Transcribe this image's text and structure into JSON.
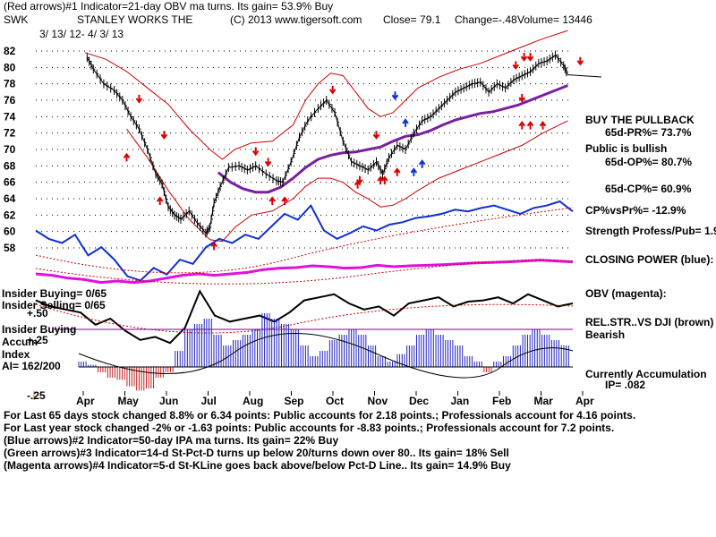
{
  "header": {
    "line1": "(Red arrows)#1 Indicator=21-day OBV ma turns. Its gain= 53.9% Buy",
    "symbol": "SWK",
    "company": "STANLEY WORKS THE",
    "copyright": "(C) 2013 www.tigersoft.com",
    "close": "Close=  79.1",
    "change": "Change=-.48",
    "volume": "Volume= 13446",
    "date_range": "3/ 13/ 12-  4/ 3/ 13"
  },
  "chart_data": {
    "type": "line",
    "title": "STANLEY WORKS THE (SWK)",
    "ylim": [
      58,
      82
    ],
    "yticks": [
      "82",
      "80",
      "78",
      "76",
      "74",
      "72",
      "70",
      "68",
      "66",
      "64",
      "62",
      "60",
      "58"
    ],
    "xlabels": [
      "Apr",
      "May",
      "Jun",
      "Jul",
      "Aug",
      "Sep",
      "Oct",
      "Nov",
      "Dec",
      "Jan",
      "Feb",
      "Mar",
      "Apr"
    ],
    "x_months": [
      0,
      1,
      2,
      3,
      4,
      5,
      6,
      7,
      8,
      9,
      10,
      11,
      12
    ],
    "price": [
      [
        0.05,
        81.2
      ],
      [
        0.2,
        79.8
      ],
      [
        0.45,
        78.0
      ],
      [
        0.7,
        77.2
      ],
      [
        0.9,
        76.0
      ],
      [
        1.1,
        74.0
      ],
      [
        1.3,
        72.5
      ],
      [
        1.5,
        70.0
      ],
      [
        1.7,
        67.0
      ],
      [
        1.85,
        65.8
      ],
      [
        2.0,
        63.0
      ],
      [
        2.15,
        62.0
      ],
      [
        2.3,
        61.5
      ],
      [
        2.5,
        62.5
      ],
      [
        2.7,
        61.0
      ],
      [
        2.9,
        59.8
      ],
      [
        3.0,
        60.5
      ],
      [
        3.1,
        63.5
      ],
      [
        3.25,
        65.5
      ],
      [
        3.45,
        67.8
      ],
      [
        3.7,
        68.0
      ],
      [
        3.9,
        67.5
      ],
      [
        4.1,
        68.0
      ],
      [
        4.35,
        67.0
      ],
      [
        4.6,
        66.2
      ],
      [
        4.75,
        66.0
      ],
      [
        4.95,
        68.5
      ],
      [
        5.15,
        71.5
      ],
      [
        5.35,
        73.5
      ],
      [
        5.6,
        75.0
      ],
      [
        5.8,
        76.0
      ],
      [
        6.0,
        74.5
      ],
      [
        6.2,
        71.0
      ],
      [
        6.4,
        68.5
      ],
      [
        6.6,
        68.0
      ],
      [
        6.8,
        67.5
      ],
      [
        7.0,
        68.5
      ],
      [
        7.15,
        67.0
      ],
      [
        7.3,
        69.0
      ],
      [
        7.5,
        70.5
      ],
      [
        7.7,
        70.0
      ],
      [
        7.9,
        72.0
      ],
      [
        8.1,
        73.5
      ],
      [
        8.3,
        74.0
      ],
      [
        8.5,
        75.0
      ],
      [
        8.7,
        76.0
      ],
      [
        8.9,
        77.0
      ],
      [
        9.1,
        77.5
      ],
      [
        9.3,
        78.0
      ],
      [
        9.5,
        78.2
      ],
      [
        9.7,
        77.0
      ],
      [
        9.9,
        78.0
      ],
      [
        10.1,
        77.5
      ],
      [
        10.3,
        78.5
      ],
      [
        10.5,
        79.0
      ],
      [
        10.7,
        79.5
      ],
      [
        10.9,
        80.5
      ],
      [
        11.1,
        80.8
      ],
      [
        11.3,
        81.5
      ],
      [
        11.5,
        80.2
      ],
      [
        11.6,
        79.1
      ]
    ],
    "ma50": [
      [
        3.2,
        67.2
      ],
      [
        3.5,
        66.0
      ],
      [
        3.8,
        65.2
      ],
      [
        4.1,
        64.8
      ],
      [
        4.4,
        64.8
      ],
      [
        4.7,
        65.4
      ],
      [
        5.0,
        66.5
      ],
      [
        5.3,
        67.8
      ],
      [
        5.6,
        68.8
      ],
      [
        5.9,
        69.3
      ],
      [
        6.2,
        69.6
      ],
      [
        6.5,
        69.7
      ],
      [
        6.8,
        70.0
      ],
      [
        7.1,
        70.3
      ],
      [
        7.4,
        71.0
      ],
      [
        7.7,
        71.6
      ],
      [
        8.0,
        71.8
      ],
      [
        8.3,
        72.3
      ],
      [
        8.6,
        73.0
      ],
      [
        8.9,
        73.6
      ],
      [
        9.2,
        74.0
      ],
      [
        9.5,
        74.4
      ],
      [
        9.8,
        74.6
      ],
      [
        10.1,
        75.0
      ],
      [
        10.4,
        75.4
      ],
      [
        10.7,
        76.0
      ],
      [
        11.0,
        76.6
      ],
      [
        11.3,
        77.2
      ],
      [
        11.6,
        77.8
      ]
    ],
    "band_upper": [
      [
        0.0,
        81.8
      ],
      [
        0.5,
        81.0
      ],
      [
        1.0,
        79.5
      ],
      [
        1.5,
        77.5
      ],
      [
        2.0,
        75.5
      ],
      [
        2.5,
        72.5
      ],
      [
        3.0,
        70.0
      ],
      [
        3.3,
        68.8
      ],
      [
        3.6,
        70.0
      ],
      [
        4.0,
        70.8
      ],
      [
        4.5,
        71.0
      ],
      [
        5.0,
        73.0
      ],
      [
        5.3,
        76.0
      ],
      [
        5.6,
        78.0
      ],
      [
        5.9,
        79.3
      ],
      [
        6.2,
        79.0
      ],
      [
        6.5,
        77.0
      ],
      [
        6.8,
        75.0
      ],
      [
        7.1,
        74.0
      ],
      [
        7.4,
        74.5
      ],
      [
        7.7,
        76.0
      ],
      [
        8.0,
        77.5
      ],
      [
        8.5,
        78.8
      ],
      [
        9.0,
        79.8
      ],
      [
        9.5,
        80.5
      ],
      [
        10.0,
        81.5
      ],
      [
        10.5,
        82.5
      ],
      [
        11.0,
        83.5
      ],
      [
        11.6,
        84.5
      ]
    ],
    "band_lower": [
      [
        1.0,
        72.5
      ],
      [
        1.5,
        69.0
      ],
      [
        2.0,
        65.0
      ],
      [
        2.5,
        61.5
      ],
      [
        3.0,
        59.0
      ],
      [
        3.3,
        58.8
      ],
      [
        3.6,
        60.5
      ],
      [
        4.0,
        62.0
      ],
      [
        4.5,
        62.5
      ],
      [
        5.0,
        64.0
      ],
      [
        5.3,
        65.5
      ],
      [
        5.6,
        66.5
      ],
      [
        5.9,
        66.5
      ],
      [
        6.2,
        66.0
      ],
      [
        6.5,
        64.8
      ],
      [
        6.8,
        64.0
      ],
      [
        7.1,
        63.0
      ],
      [
        7.4,
        63.2
      ],
      [
        7.7,
        64.0
      ],
      [
        8.0,
        65.0
      ],
      [
        8.5,
        66.5
      ],
      [
        9.0,
        67.5
      ],
      [
        9.5,
        68.5
      ],
      [
        10.0,
        69.5
      ],
      [
        10.5,
        70.5
      ],
      [
        11.0,
        72.0
      ],
      [
        11.6,
        73.5
      ]
    ],
    "arrows": [
      {
        "dir": "down",
        "color": "red",
        "x": 1.3,
        "y": 75.9
      },
      {
        "dir": "up",
        "color": "red",
        "x": 1.0,
        "y": 69.3
      },
      {
        "dir": "down",
        "color": "red",
        "x": 1.9,
        "y": 71.5
      },
      {
        "dir": "up",
        "color": "red",
        "x": 1.8,
        "y": 64.0
      },
      {
        "dir": "up",
        "color": "red",
        "x": 3.1,
        "y": 58.5
      },
      {
        "dir": "down",
        "color": "red",
        "x": 4.1,
        "y": 69.5
      },
      {
        "dir": "down",
        "color": "red",
        "x": 4.4,
        "y": 68.2
      },
      {
        "dir": "up",
        "color": "red",
        "x": 4.5,
        "y": 64.0
      },
      {
        "dir": "up",
        "color": "red",
        "x": 4.8,
        "y": 64.0
      },
      {
        "dir": "down",
        "color": "red",
        "x": 5.95,
        "y": 77.0
      },
      {
        "dir": "down",
        "color": "red",
        "x": 6.6,
        "y": 66.0
      },
      {
        "dir": "down",
        "color": "red",
        "x": 7.0,
        "y": 71.5
      },
      {
        "dir": "up",
        "color": "red",
        "x": 6.55,
        "y": 66.0
      },
      {
        "dir": "up",
        "color": "red",
        "x": 7.1,
        "y": 66.5
      },
      {
        "dir": "up",
        "color": "red",
        "x": 7.2,
        "y": 66.5
      },
      {
        "dir": "up",
        "color": "red",
        "x": 7.5,
        "y": 67.5
      },
      {
        "dir": "down",
        "color": "blue",
        "x": 7.45,
        "y": 76.3
      },
      {
        "dir": "up",
        "color": "blue",
        "x": 7.7,
        "y": 73.5
      },
      {
        "dir": "up",
        "color": "blue",
        "x": 7.9,
        "y": 67.5
      },
      {
        "dir": "up",
        "color": "blue",
        "x": 8.1,
        "y": 68.5
      },
      {
        "dir": "down",
        "color": "red",
        "x": 10.35,
        "y": 80.0
      },
      {
        "dir": "down",
        "color": "red",
        "x": 10.55,
        "y": 81.0
      },
      {
        "dir": "down",
        "color": "red",
        "x": 10.7,
        "y": 81.0
      },
      {
        "dir": "down",
        "color": "red",
        "x": 10.5,
        "y": 76.0
      },
      {
        "dir": "up",
        "color": "red",
        "x": 10.5,
        "y": 73.2
      },
      {
        "dir": "up",
        "color": "red",
        "x": 10.7,
        "y": 73.2
      },
      {
        "dir": "up",
        "color": "red",
        "x": 11.0,
        "y": 73.2
      },
      {
        "dir": "down",
        "color": "red",
        "x": 11.9,
        "y": 80.5
      }
    ],
    "closing_power": [
      0.65,
      0.55,
      0.5,
      0.6,
      0.35,
      0.45,
      0.3,
      0.1,
      0.05,
      0.2,
      0.12,
      0.3,
      0.25,
      0.45,
      0.55,
      0.5,
      0.6,
      0.55,
      0.7,
      0.85,
      0.78,
      0.95,
      0.65,
      0.55,
      0.62,
      0.7,
      0.65,
      0.72,
      0.75,
      0.8,
      0.82,
      0.85,
      0.9,
      0.88,
      0.92,
      0.95,
      0.9,
      0.85,
      0.92,
      0.95,
      1.0,
      0.88
    ],
    "obv": [
      0.5,
      0.45,
      0.35,
      0.3,
      0.2,
      0.25,
      0.2,
      0.25,
      0.35,
      0.45,
      0.5,
      0.45,
      0.5,
      0.55,
      0.65,
      0.7,
      0.72,
      0.78,
      0.75,
      0.7,
      0.72,
      0.8,
      0.75,
      0.78,
      0.8,
      0.82,
      0.85,
      0.88,
      0.9,
      0.92,
      0.95,
      0.98,
      0.95,
      0.92
    ],
    "rel_strength": [
      0.8,
      0.7,
      0.65,
      0.6,
      0.4,
      0.5,
      0.3,
      0.15,
      0.2,
      0.1,
      0.35,
      0.95,
      0.55,
      0.45,
      0.5,
      0.55,
      0.45,
      0.6,
      0.8,
      0.85,
      0.9,
      0.75,
      0.65,
      0.7,
      0.55,
      0.75,
      0.8,
      0.85,
      0.7,
      0.78,
      0.8,
      0.85,
      0.75,
      0.9,
      0.8,
      0.7,
      0.75
    ],
    "accum": [
      0.05,
      0.02,
      -0.05,
      -0.1,
      -0.12,
      -0.18,
      -0.22,
      -0.2,
      -0.1,
      -0.05,
      0.15,
      0.35,
      0.4,
      0.45,
      0.3,
      0.2,
      0.25,
      0.3,
      0.35,
      0.5,
      0.45,
      0.4,
      0.35,
      0.2,
      0.1,
      0.15,
      0.25,
      0.3,
      0.35,
      0.3,
      0.2,
      0.1,
      0.05,
      0.12,
      0.2,
      0.3,
      0.35,
      0.3,
      0.25,
      0.2,
      0.1,
      0.05,
      -0.05,
      0.05,
      0.1,
      0.2,
      0.3,
      0.35,
      0.3,
      0.25,
      0.2
    ]
  },
  "right_panel": {
    "buy_pullback": "BUY THE PULLBACK",
    "pr": "65d-PR%= 73.7%",
    "public_bullish": "Public is bullish",
    "op": "65d-OP%= 80.7%",
    "cp": "65d-CP%= 60.9%",
    "cp_vs_pr": "CP%vsPr%= -12.9%",
    "strength": "Strength Profess/Pub= 1.9",
    "closing_power": "CLOSING POWER (blue):",
    "obv": "OBV (magenta):",
    "rel_str": "REL.STR..VS DJI (brown)",
    "bearish": "Bearish",
    "accumulation": "Currently Accumulation",
    "ip": "IP=  .082"
  },
  "left_panel": {
    "insider_buying_ratio": "Insider Buying= 0/65",
    "insider_selling_ratio": "Insider Selling= 0/65",
    "plus50": "+.50",
    "insider_buying": "Insider Buying",
    "accum": "Accum",
    "plus25": "+.25",
    "index": "Index",
    "ai": "AI= 162/200",
    "minus25": "-.25"
  },
  "footer": {
    "line1": "For Last 65 days stock changed  8.8% or  6.34 points:  Public accounts for  2.18 points.;  Professionals account for  4.16 points.",
    "line2": "For Last year stock changed  -2% or -1.63 points:  Public accounts for -8.83 points.;  Professionals account for  7.2 points.",
    "line3": "(Blue arrows)#2 Indicator=50-day IPA ma turns. Its gain= 22% Buy",
    "line4": "(Green arrows)#3 Indicator=14-d St-Pct-D turns up below 20/turns down over 80.. Its gain= 18% Sell",
    "line5": "(Magenta arrows)#4 Indicator=5-d St-KLine goes back above/below Pct-D Line.. Its gain= 14.9% Buy"
  }
}
